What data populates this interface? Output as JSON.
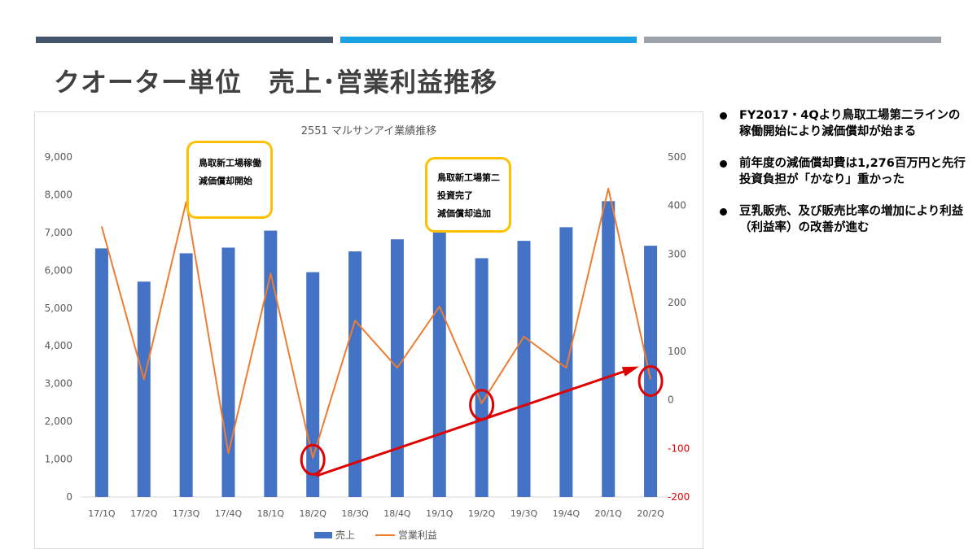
{
  "slide": {
    "title": "クオーター単位　売上･営業利益推移"
  },
  "colors": {
    "strip_dark": "#44546a",
    "strip_blue": "#1ba1e2",
    "strip_gray": "#9ea3aa",
    "bar": "#4472c4",
    "line": "#ed7d31",
    "highlight": "#e00000",
    "callout_border": "#ffc000"
  },
  "annotations": [
    {
      "lines": [
        "鳥取新工場稼働",
        "減価償却開始"
      ]
    },
    {
      "lines": [
        "鳥取新工場第二",
        "投資完了",
        "減価償却追加"
      ]
    }
  ],
  "bullets": [
    "FY2017・4Qより鳥取工場第二ラインの稼働開始により減価償却が始まる",
    "前年度の減価償却費は1,276百万円と先行投資負担が「かなり」重かった",
    "豆乳販売、及び販売比率の増加により利益（利益率）の改善が進む"
  ],
  "chart_data": {
    "type": "bar",
    "title": "2551 マルサンアイ業績推移",
    "categories": [
      "17/1Q",
      "17/2Q",
      "17/3Q",
      "17/4Q",
      "18/1Q",
      "18/2Q",
      "18/3Q",
      "18/4Q",
      "19/1Q",
      "19/2Q",
      "19/3Q",
      "19/4Q",
      "20/1Q",
      "20/2Q"
    ],
    "series": [
      {
        "name": "売上",
        "type": "bar",
        "axis": "left",
        "values": [
          6580,
          5700,
          6450,
          6600,
          7050,
          5950,
          6500,
          6820,
          7120,
          6320,
          6780,
          7140,
          7830,
          6650
        ]
      },
      {
        "name": "営業利益",
        "type": "line",
        "axis": "right",
        "values": [
          357,
          42,
          407,
          -110,
          260,
          -120,
          163,
          66,
          192,
          -7,
          130,
          66,
          435,
          42
        ]
      }
    ],
    "y_left": {
      "ylim": [
        0,
        9000
      ],
      "ticks": [
        0,
        1000,
        2000,
        3000,
        4000,
        5000,
        6000,
        7000,
        8000,
        9000
      ],
      "tick_labels": [
        "0",
        "1,000",
        "2,000",
        "3,000",
        "4,000",
        "5,000",
        "6,000",
        "7,000",
        "8,000",
        "9,000"
      ]
    },
    "y_right": {
      "ylim": [
        -200,
        500
      ],
      "ticks": [
        -200,
        -100,
        0,
        100,
        200,
        300,
        400,
        500
      ],
      "tick_labels": [
        "-200",
        "-100",
        "0",
        "100",
        "200",
        "300",
        "400",
        "500"
      ]
    },
    "grid": false,
    "legend": "bottom",
    "highlighted_points": [
      "18/2Q",
      "19/2Q",
      "20/2Q"
    ],
    "trend_arrow": {
      "from": "18/2Q",
      "to": "20/2Q"
    }
  }
}
